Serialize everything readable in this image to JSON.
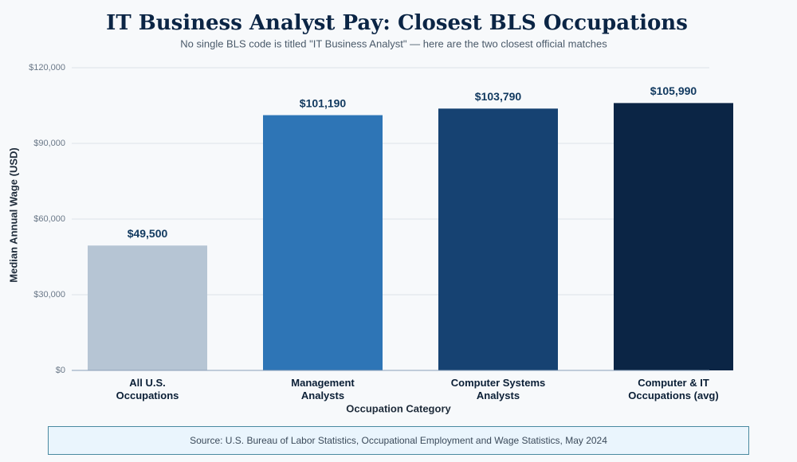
{
  "chart_data": {
    "type": "bar",
    "title": "IT Business Analyst Pay: Closest BLS Occupations",
    "subtitle": "No single BLS code is titled \"IT Business Analyst\" — here are the two closest official matches",
    "x_label": "Occupation Category",
    "y_label": "Median Annual Wage (USD)",
    "categories": [
      "All U.S.\nOccupations",
      "Management\nAnalysts",
      "Computer Systems\nAnalysts",
      "Computer & IT\nOccupations (avg)"
    ],
    "values": [
      49500,
      101190,
      103790,
      105990
    ],
    "value_labels": [
      "$49,500",
      "$101,190",
      "$103,790",
      "$105,990"
    ],
    "colors": [
      "#b6c5d4",
      "#2e75b6",
      "#164272",
      "#0b2545"
    ],
    "ylim": [
      0,
      120000
    ],
    "yticks": [
      {
        "value": 0,
        "label": "$0"
      },
      {
        "value": 30000,
        "label": "$30,000"
      },
      {
        "value": 60000,
        "label": "$60,000"
      },
      {
        "value": 90000,
        "label": "$90,000"
      },
      {
        "value": 120000,
        "label": "$120,000"
      }
    ],
    "grid": true,
    "source": "Source: U.S. Bureau of Labor Statistics, Occupational Employment and Wage Statistics, May 2024"
  }
}
